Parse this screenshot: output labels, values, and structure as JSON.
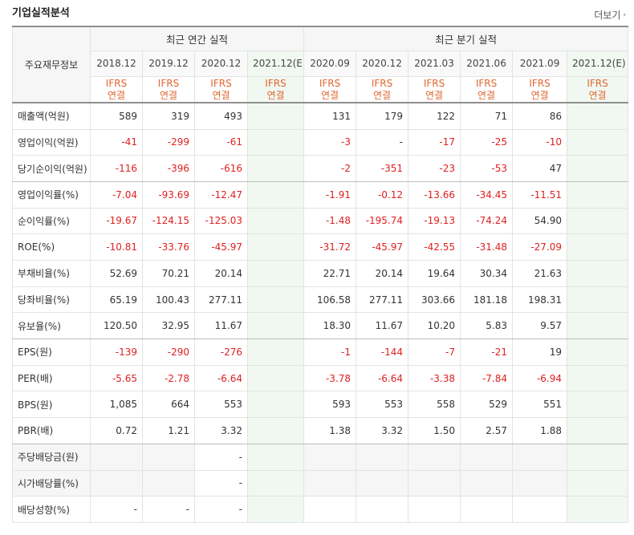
{
  "title": "기업실적분석",
  "more_label": "더보기",
  "row_header_label": "주요재무정보",
  "groups": {
    "annual": "최근 연간 실적",
    "quarterly": "최근 분기 실적"
  },
  "periods": [
    {
      "label": "2018.12",
      "est": false
    },
    {
      "label": "2019.12",
      "est": false
    },
    {
      "label": "2020.12",
      "est": false
    },
    {
      "label": "2021.12(E)",
      "est": true
    },
    {
      "label": "2020.09",
      "est": false
    },
    {
      "label": "2020.12",
      "est": false
    },
    {
      "label": "2021.03",
      "est": false
    },
    {
      "label": "2021.06",
      "est": false
    },
    {
      "label": "2021.09",
      "est": false
    },
    {
      "label": "2021.12(E)",
      "est": true
    }
  ],
  "standard": {
    "line1": "IFRS",
    "line2": "연결"
  },
  "rows": [
    {
      "label": "매출액(억원)",
      "values": [
        "589",
        "319",
        "493",
        "",
        "131",
        "179",
        "122",
        "71",
        "86",
        ""
      ]
    },
    {
      "label": "영업이익(억원)",
      "values": [
        "-41",
        "-299",
        "-61",
        "",
        "-3",
        "-",
        "-17",
        "-25",
        "-10",
        ""
      ]
    },
    {
      "label": "당기순이익(억원)",
      "values": [
        "-116",
        "-396",
        "-616",
        "",
        "-2",
        "-351",
        "-23",
        "-53",
        "47",
        ""
      ]
    },
    {
      "label": "영업이익률(%)",
      "values": [
        "-7.04",
        "-93.69",
        "-12.47",
        "",
        "-1.91",
        "-0.12",
        "-13.66",
        "-34.45",
        "-11.51",
        ""
      ]
    },
    {
      "label": "순이익률(%)",
      "values": [
        "-19.67",
        "-124.15",
        "-125.03",
        "",
        "-1.48",
        "-195.74",
        "-19.13",
        "-74.24",
        "54.90",
        ""
      ]
    },
    {
      "label": "ROE(%)",
      "values": [
        "-10.81",
        "-33.76",
        "-45.97",
        "",
        "-31.72",
        "-45.97",
        "-42.55",
        "-31.48",
        "-27.09",
        ""
      ]
    },
    {
      "label": "부채비율(%)",
      "values": [
        "52.69",
        "70.21",
        "20.14",
        "",
        "22.71",
        "20.14",
        "19.64",
        "30.34",
        "21.63",
        ""
      ]
    },
    {
      "label": "당좌비율(%)",
      "values": [
        "65.19",
        "100.43",
        "277.11",
        "",
        "106.58",
        "277.11",
        "303.66",
        "181.18",
        "198.31",
        ""
      ]
    },
    {
      "label": "유보율(%)",
      "values": [
        "120.50",
        "32.95",
        "11.67",
        "",
        "18.30",
        "11.67",
        "10.20",
        "5.83",
        "9.57",
        ""
      ]
    },
    {
      "label": "EPS(원)",
      "values": [
        "-139",
        "-290",
        "-276",
        "",
        "-1",
        "-144",
        "-7",
        "-21",
        "19",
        ""
      ]
    },
    {
      "label": "PER(배)",
      "values": [
        "-5.65",
        "-2.78",
        "-6.64",
        "",
        "-3.78",
        "-6.64",
        "-3.38",
        "-7.84",
        "-6.94",
        ""
      ]
    },
    {
      "label": "BPS(원)",
      "values": [
        "1,085",
        "664",
        "553",
        "",
        "593",
        "553",
        "558",
        "529",
        "551",
        ""
      ]
    },
    {
      "label": "PBR(배)",
      "values": [
        "0.72",
        "1.21",
        "3.32",
        "",
        "1.38",
        "3.32",
        "1.50",
        "2.57",
        "1.88",
        ""
      ]
    },
    {
      "label": "주당배당금(원)",
      "values": [
        "",
        "",
        "-",
        "",
        "",
        "",
        "",
        "",
        "",
        ""
      ],
      "gray": true
    },
    {
      "label": "시가배당률(%)",
      "values": [
        "",
        "",
        "-",
        "",
        "",
        "",
        "",
        "",
        "",
        ""
      ],
      "gray": true
    },
    {
      "label": "배당성향(%)",
      "values": [
        "-",
        "-",
        "-",
        "",
        "",
        "",
        "",
        "",
        "",
        ""
      ],
      "gray": false
    }
  ],
  "colors": {
    "negative": "#e02020",
    "standard": "#e0662f",
    "estimate_bg": "#f1f8f1",
    "header_bg": "#f6f6f6"
  }
}
